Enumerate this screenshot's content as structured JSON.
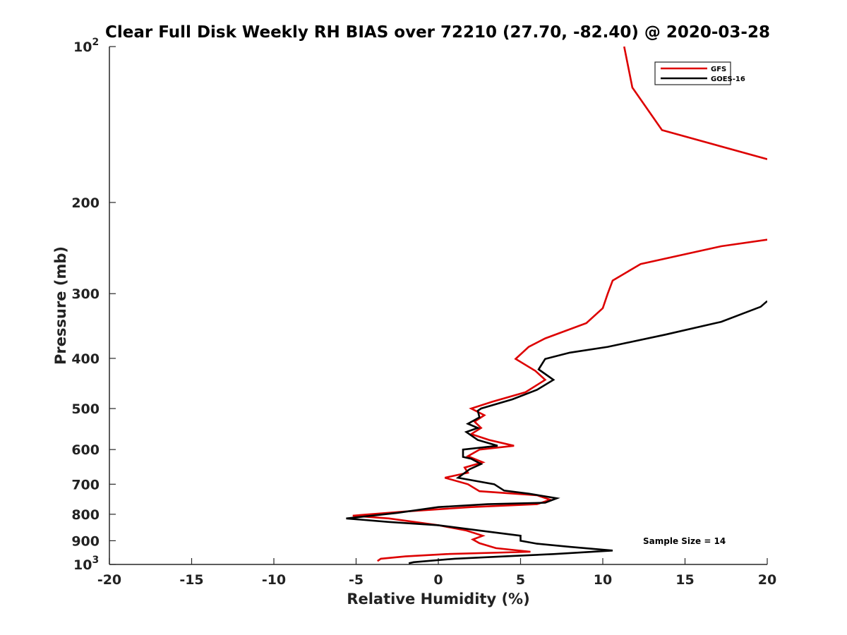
{
  "chart_data": {
    "type": "line",
    "title": "Clear Full Disk Weekly RH BIAS over 72210 (27.70, -82.40) @ 2020-03-28",
    "xlabel": "Relative Humidity (%)",
    "ylabel": "Pressure (mb)",
    "xlim": [
      -20,
      20
    ],
    "ylim": [
      100,
      1000
    ],
    "y_scale": "log",
    "y_reversed": true,
    "x_ticks": [
      -20,
      -15,
      -10,
      -5,
      0,
      5,
      10,
      15,
      20
    ],
    "x_tick_labels": [
      "-20",
      "-15",
      "-10",
      "-5",
      "0",
      "5",
      "10",
      "15",
      "20"
    ],
    "y_ticks": [
      {
        "value": 100,
        "base": "10",
        "exp": "2"
      },
      {
        "value": 200,
        "label": "200"
      },
      {
        "value": 300,
        "label": "300"
      },
      {
        "value": 400,
        "label": "400"
      },
      {
        "value": 500,
        "label": "500"
      },
      {
        "value": 600,
        "label": "600"
      },
      {
        "value": 700,
        "label": "700"
      },
      {
        "value": 800,
        "label": "800"
      },
      {
        "value": 900,
        "label": "900"
      },
      {
        "value": 1000,
        "base": "10",
        "exp": "3"
      }
    ],
    "grid": false,
    "legend_position": "top-right",
    "annotation": "Sample Size = 14",
    "series": [
      {
        "name": "GFS",
        "color": "#dd0000",
        "segments": [
          [
            {
              "x": 11.3,
              "y": 100
            },
            {
              "x": 11.8,
              "y": 120
            },
            {
              "x": 13.6,
              "y": 145
            },
            {
              "x": 20.0,
              "y": 165
            }
          ],
          [
            {
              "x": 20.0,
              "y": 236
            },
            {
              "x": 17.2,
              "y": 243
            },
            {
              "x": 12.3,
              "y": 263
            },
            {
              "x": 10.6,
              "y": 283
            },
            {
              "x": 10.3,
              "y": 300
            },
            {
              "x": 10.0,
              "y": 320
            },
            {
              "x": 9.0,
              "y": 342
            },
            {
              "x": 6.5,
              "y": 366
            },
            {
              "x": 5.5,
              "y": 380
            },
            {
              "x": 4.7,
              "y": 401
            },
            {
              "x": 5.9,
              "y": 423
            },
            {
              "x": 6.5,
              "y": 440
            },
            {
              "x": 5.3,
              "y": 465
            },
            {
              "x": 3.3,
              "y": 485
            },
            {
              "x": 2.0,
              "y": 500
            },
            {
              "x": 2.8,
              "y": 515
            },
            {
              "x": 2.2,
              "y": 530
            },
            {
              "x": 2.6,
              "y": 545
            },
            {
              "x": 2.0,
              "y": 560
            },
            {
              "x": 3.1,
              "y": 575
            },
            {
              "x": 4.6,
              "y": 590
            },
            {
              "x": 2.5,
              "y": 600
            },
            {
              "x": 1.8,
              "y": 618
            },
            {
              "x": 2.7,
              "y": 635
            },
            {
              "x": 1.6,
              "y": 650
            },
            {
              "x": 1.8,
              "y": 665
            },
            {
              "x": 0.4,
              "y": 680
            },
            {
              "x": 1.8,
              "y": 700
            },
            {
              "x": 2.5,
              "y": 722
            },
            {
              "x": 6.0,
              "y": 735
            },
            {
              "x": 6.8,
              "y": 750
            },
            {
              "x": 6.0,
              "y": 765
            },
            {
              "x": 2.0,
              "y": 775
            },
            {
              "x": -2.0,
              "y": 790
            },
            {
              "x": -5.2,
              "y": 805
            },
            {
              "x": -3.0,
              "y": 815
            },
            {
              "x": 0.0,
              "y": 840
            },
            {
              "x": 1.7,
              "y": 860
            },
            {
              "x": 2.7,
              "y": 880
            },
            {
              "x": 2.1,
              "y": 895
            },
            {
              "x": 2.5,
              "y": 910
            },
            {
              "x": 3.5,
              "y": 930
            },
            {
              "x": 5.6,
              "y": 945
            },
            {
              "x": 0.5,
              "y": 955
            },
            {
              "x": -2.0,
              "y": 965
            },
            {
              "x": -3.5,
              "y": 975
            },
            {
              "x": -3.7,
              "y": 985
            }
          ]
        ]
      },
      {
        "name": "GOES-16",
        "color": "#000000",
        "segments": [
          [
            {
              "x": 20.0,
              "y": 310
            },
            {
              "x": 19.6,
              "y": 318
            },
            {
              "x": 17.2,
              "y": 340
            },
            {
              "x": 13.8,
              "y": 360
            },
            {
              "x": 10.3,
              "y": 380
            },
            {
              "x": 8.0,
              "y": 390
            },
            {
              "x": 6.5,
              "y": 401
            },
            {
              "x": 6.1,
              "y": 420
            },
            {
              "x": 7.0,
              "y": 440
            },
            {
              "x": 6.0,
              "y": 460
            },
            {
              "x": 4.5,
              "y": 480
            },
            {
              "x": 2.6,
              "y": 500
            },
            {
              "x": 2.4,
              "y": 505
            },
            {
              "x": 2.5,
              "y": 520
            },
            {
              "x": 1.8,
              "y": 535
            },
            {
              "x": 2.4,
              "y": 545
            },
            {
              "x": 1.7,
              "y": 555
            },
            {
              "x": 2.4,
              "y": 575
            },
            {
              "x": 3.6,
              "y": 590
            },
            {
              "x": 1.5,
              "y": 600
            },
            {
              "x": 1.5,
              "y": 620
            },
            {
              "x": 2.0,
              "y": 625
            },
            {
              "x": 2.6,
              "y": 640
            },
            {
              "x": 1.9,
              "y": 655
            },
            {
              "x": 1.2,
              "y": 680
            },
            {
              "x": 3.4,
              "y": 700
            },
            {
              "x": 4.0,
              "y": 720
            },
            {
              "x": 5.5,
              "y": 730
            },
            {
              "x": 7.2,
              "y": 745
            },
            {
              "x": 6.5,
              "y": 760
            },
            {
              "x": 3.0,
              "y": 765
            },
            {
              "x": 0.0,
              "y": 775
            },
            {
              "x": -2.5,
              "y": 795
            },
            {
              "x": -5.6,
              "y": 815
            },
            {
              "x": -3.0,
              "y": 828
            },
            {
              "x": 0.0,
              "y": 840
            },
            {
              "x": 2.5,
              "y": 860
            },
            {
              "x": 5.0,
              "y": 880
            },
            {
              "x": 5.0,
              "y": 900
            },
            {
              "x": 6.0,
              "y": 912
            },
            {
              "x": 8.0,
              "y": 925
            },
            {
              "x": 10.6,
              "y": 940
            },
            {
              "x": 7.0,
              "y": 955
            },
            {
              "x": 4.0,
              "y": 965
            },
            {
              "x": 1.0,
              "y": 975
            },
            {
              "x": -1.5,
              "y": 990
            },
            {
              "x": -1.8,
              "y": 995
            }
          ]
        ]
      }
    ]
  }
}
